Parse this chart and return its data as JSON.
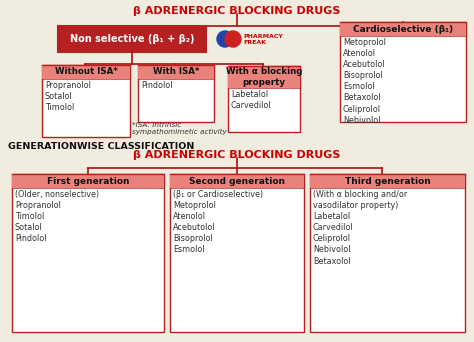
{
  "bg_color": "#f0ece0",
  "title_color": "#cc0000",
  "box_header_fill": "#e8827a",
  "box_header_dark": "#b52020",
  "box_border": "#b52020",
  "box_bg": "#ffffff",
  "text_color": "#333333",
  "line_color": "#aa1111",
  "top_title": "β ADRENERGIC BLOCKING DRUGS",
  "non_selective_label": "Non selective (β₁ + β₂)",
  "cardioselective_label": "Cardioselective (β₁)",
  "cardioselective_drugs": "Metoprolol\nAtenolol\nAcebutolol\nBisoprolol\nEsmolol\nBetaxolol\nCeliprolol\nNebivolol",
  "without_isa_header": "Without ISA*",
  "without_isa_drugs": "Propranolol\nSotalol\nTimolol",
  "with_isa_header": "With ISA*",
  "with_isa_drugs": "Pindolol",
  "isa_note": "*ISA: Intrinsic\nsympathomimetic activity",
  "alpha_block_header": "With α blocking\nproperty",
  "alpha_block_drugs": "Labetalol\nCarvedilol",
  "gen_classification_label": "GENERATIONWISE CLASSIFICATION",
  "bottom_title": "β ADRENERGIC BLOCKING DRUGS",
  "gen1_header": "First generation",
  "gen1_body": "(Older, nonselective)\nPropranolol\nTimolol\nSotalol\nPindolol",
  "gen2_header": "Second generation",
  "gen2_body": "(β₁ or Cardioselective)\nMetoprolol\nAtenolol\nAcebutolol\nBisoprolol\nEsmolol",
  "gen3_header": "Third generation",
  "gen3_body": "(With α blocking and/or\nvasodilator property)\nLabetalol\nCarvedilol\nCeliprolol\nNebivolol\nBetaxolol"
}
